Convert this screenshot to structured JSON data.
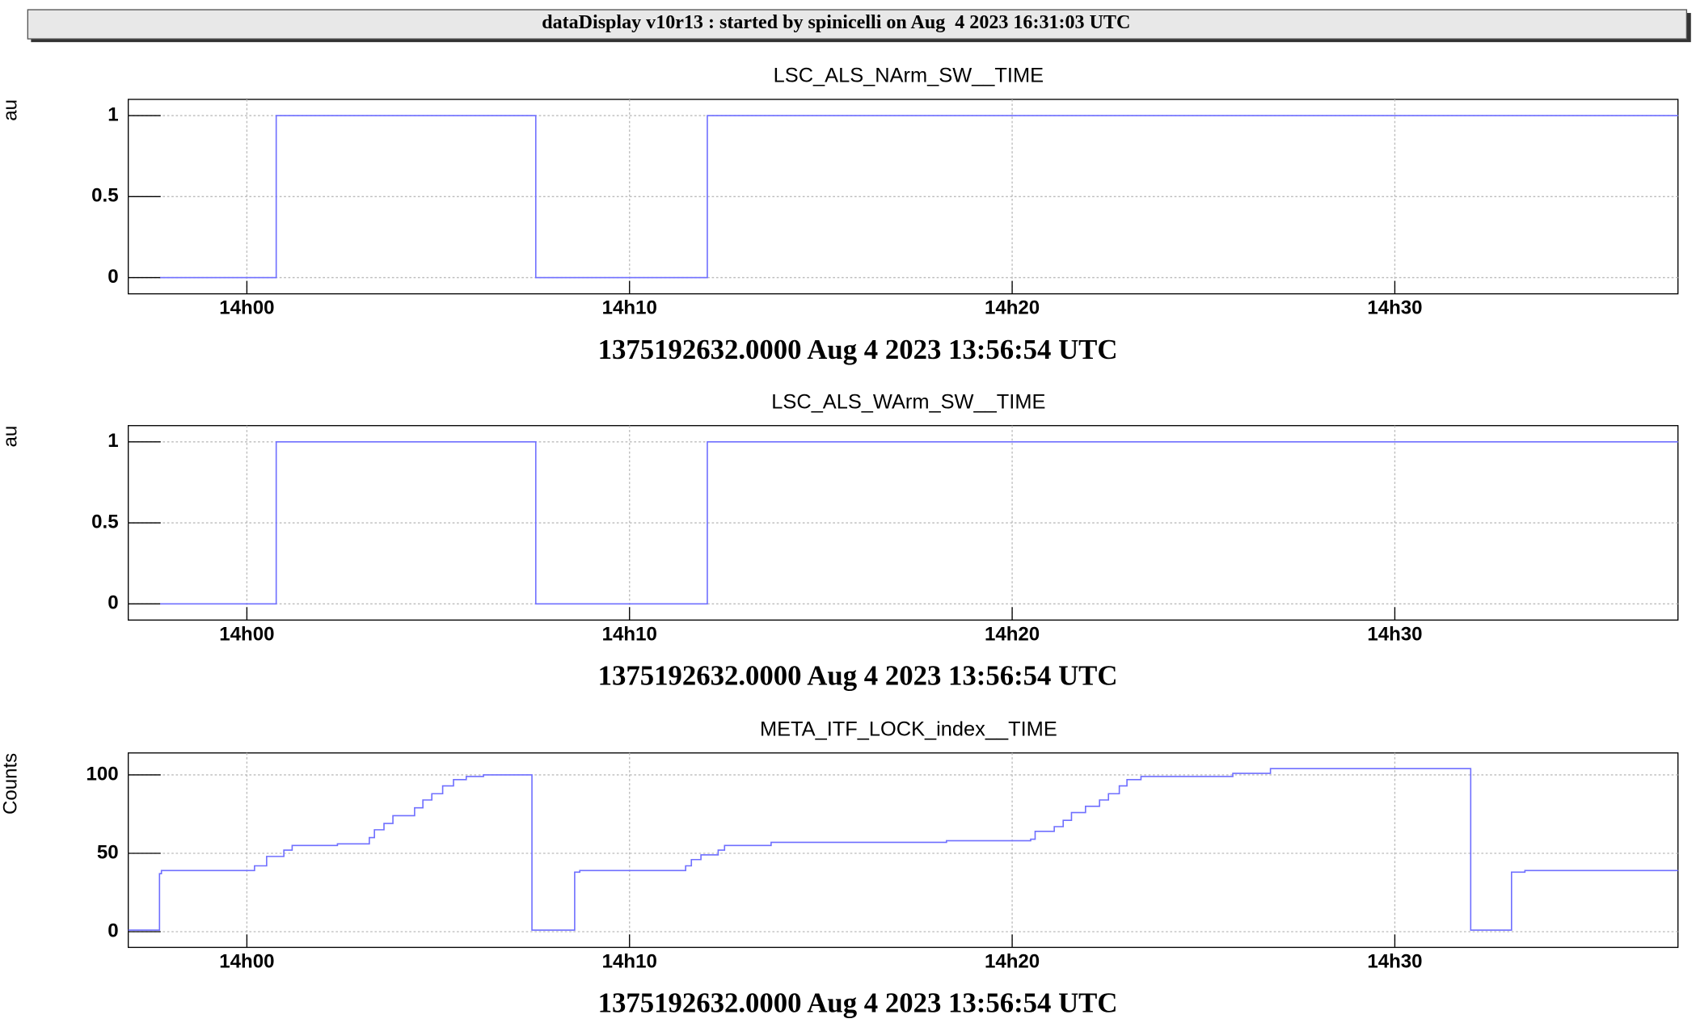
{
  "header": {
    "title": "dataDisplay v10r13 : started by spinicelli on Aug  4 2023 16:31:03 UTC"
  },
  "chart_data": [
    {
      "type": "line",
      "drawstyle": "steps-post",
      "title": "LSC_ALS_NArm_SW__TIME",
      "xlabel": "1375192632.0000 Aug 4 2023 13:56:54 UTC",
      "ylabel": "au",
      "color": "#6f6fff",
      "grid": true,
      "x": [
        "13:57:44",
        "14:00:46",
        "14:07:33",
        "14:12:02",
        "14:37:24"
      ],
      "values": [
        0,
        1,
        0,
        1,
        1
      ],
      "xlim": [
        "13:56:54",
        "14:37:24"
      ],
      "xticks": [
        {
          "value": "14:00:00",
          "label": "14h00"
        },
        {
          "value": "14:10:00",
          "label": "14h10"
        },
        {
          "value": "14:20:00",
          "label": "14h20"
        },
        {
          "value": "14:30:00",
          "label": "14h30"
        }
      ],
      "ylim": [
        -0.1,
        1.1
      ],
      "yticks": [
        0,
        0.5,
        1
      ]
    },
    {
      "type": "line",
      "drawstyle": "steps-post",
      "title": "LSC_ALS_WArm_SW__TIME",
      "xlabel": "1375192632.0000 Aug 4 2023 13:56:54 UTC",
      "ylabel": "au",
      "color": "#6f6fff",
      "grid": true,
      "x": [
        "13:57:44",
        "14:00:46",
        "14:07:33",
        "14:12:02",
        "14:37:24"
      ],
      "values": [
        0,
        1,
        0,
        1,
        1
      ],
      "xlim": [
        "13:56:54",
        "14:37:24"
      ],
      "xticks": [
        {
          "value": "14:00:00",
          "label": "14h00"
        },
        {
          "value": "14:10:00",
          "label": "14h10"
        },
        {
          "value": "14:20:00",
          "label": "14h20"
        },
        {
          "value": "14:30:00",
          "label": "14h30"
        }
      ],
      "ylim": [
        -0.1,
        1.1
      ],
      "yticks": [
        0,
        0.5,
        1
      ]
    },
    {
      "type": "line",
      "drawstyle": "steps-post",
      "title": "META_ITF_LOCK_index__TIME",
      "xlabel": "1375192632.0000 Aug 4 2023 13:56:54 UTC",
      "ylabel": "Counts",
      "color": "#6f6fff",
      "grid": true,
      "x": [
        "13:56:54",
        "13:57:43",
        "13:57:46",
        "14:00:12",
        "14:00:31",
        "14:00:58",
        "14:01:11",
        "14:02:22",
        "14:03:12",
        "14:03:20",
        "14:03:35",
        "14:03:49",
        "14:04:23",
        "14:04:36",
        "14:04:50",
        "14:05:07",
        "14:05:24",
        "14:05:44",
        "14:06:11",
        "14:07:27",
        "14:08:34",
        "14:08:42",
        "14:11:28",
        "14:11:37",
        "14:11:52",
        "14:12:19",
        "14:12:29",
        "14:13:42",
        "14:18:17",
        "14:20:29",
        "14:20:36",
        "14:21:06",
        "14:21:20",
        "14:21:33",
        "14:21:55",
        "14:22:17",
        "14:22:31",
        "14:22:48",
        "14:23:00",
        "14:23:22",
        "14:25:46",
        "14:26:45",
        "14:31:59",
        "14:33:03",
        "14:33:24",
        "14:37:24"
      ],
      "values": [
        1,
        37,
        39,
        42,
        48,
        52,
        55,
        56,
        60,
        65,
        69,
        74,
        79,
        84,
        88,
        93,
        97,
        99,
        100,
        1,
        38,
        39,
        42,
        46,
        49,
        52,
        55,
        57,
        58,
        59,
        64,
        67,
        71,
        76,
        80,
        84,
        88,
        93,
        97,
        99,
        101,
        104,
        1,
        38,
        39,
        39
      ],
      "xlim": [
        "13:56:54",
        "14:37:24"
      ],
      "xticks": [
        {
          "value": "14:00:00",
          "label": "14h00"
        },
        {
          "value": "14:10:00",
          "label": "14h10"
        },
        {
          "value": "14:20:00",
          "label": "14h20"
        },
        {
          "value": "14:30:00",
          "label": "14h30"
        }
      ],
      "ylim": [
        -10,
        114
      ],
      "yticks": [
        0,
        50,
        100
      ]
    }
  ]
}
